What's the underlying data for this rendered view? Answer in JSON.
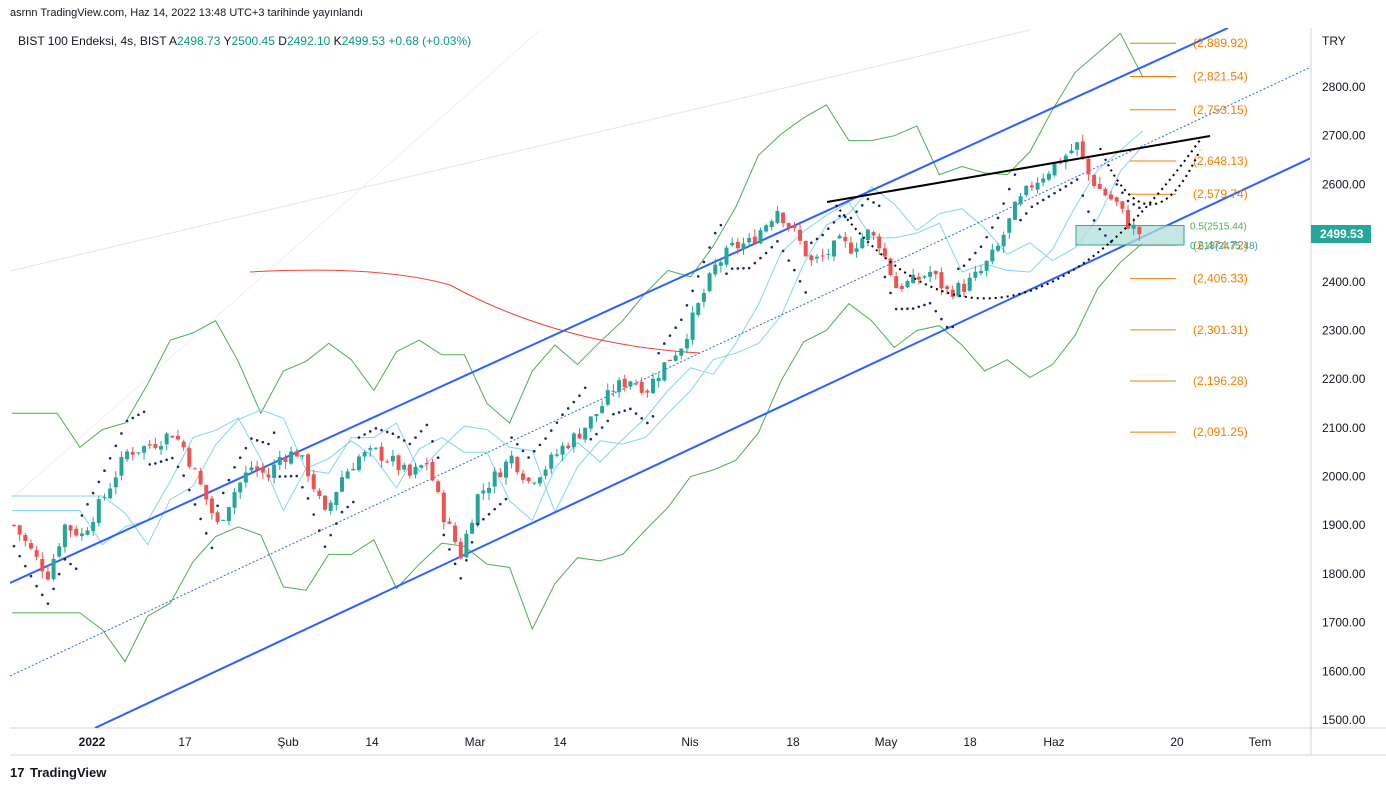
{
  "header": {
    "publish_line": "asrnn TradingView.com, Haz 14, 2022 13:48 UTC+3 tarihinde yayınlandı"
  },
  "legend": {
    "symbol": "BIST 100 Endeksi, 4s, BIST",
    "o_label": "A",
    "o_value": "2498.73",
    "h_label": "Y",
    "h_value": "2500.45",
    "l_label": "D",
    "l_value": "2492.10",
    "c_label": "K",
    "c_value": "2499.53",
    "change": "+0.68 (+0.03%)"
  },
  "footer": {
    "brand": "TradingView",
    "logo_text": "17"
  },
  "colors": {
    "up": "#26a69a",
    "down": "#ef5350",
    "channel": "#2962ff",
    "fib": "#f57c00",
    "fib_zone": "#b2dfdb",
    "price_tag": "#26a69a",
    "ma_green": "#4caf50",
    "ma_red": "#f44336",
    "ma_light": "#81d4fa",
    "sar": "#1a237e"
  },
  "chart_data": {
    "type": "candlestick",
    "currency": "TRY",
    "ylim": [
      1480,
      2920
    ],
    "y_ticks": [
      "2800.00",
      "2700.00",
      "2600.00",
      "2500.00",
      "2400.00",
      "2300.00",
      "2200.00",
      "2100.00",
      "2000.00",
      "1900.00",
      "1800.00",
      "1700.00",
      "1600.00",
      "1500.00"
    ],
    "x_ticks": [
      "2022",
      "17",
      "Şub",
      "14",
      "Mar",
      "14",
      "Nis",
      "18",
      "May",
      "18",
      "Haz",
      "20",
      "Tem"
    ],
    "last_price": "2499.53",
    "fib_levels": [
      {
        "label": "(2,889.92)",
        "value": 2889.92
      },
      {
        "label": "(2,821.54)",
        "value": 2821.54
      },
      {
        "label": "(2,753.15)",
        "value": 2753.15
      },
      {
        "label": "(2,648.13)",
        "value": 2648.13
      },
      {
        "label": "(2,579.74)",
        "value": 2579.74
      },
      {
        "label": "(2,474.72)",
        "value": 2474.72
      },
      {
        "label": "(2,406.33)",
        "value": 2406.33
      },
      {
        "label": "(2,301.31)",
        "value": 2301.31
      },
      {
        "label": "(2,196.28)",
        "value": 2196.28
      },
      {
        "label": "(2,091.25)",
        "value": 2091.25
      }
    ],
    "fib_zone": {
      "upper_label": "0.5(2515.44)",
      "upper": 2515.44,
      "lower_label": "0.618(2475.48)",
      "lower": 2475.48
    },
    "close_path": [
      [
        0,
        1900
      ],
      [
        4,
        1830
      ],
      [
        6,
        1800
      ],
      [
        9,
        1900
      ],
      [
        12,
        1880
      ],
      [
        16,
        1960
      ],
      [
        20,
        2050
      ],
      [
        23,
        2060
      ],
      [
        25,
        2070
      ],
      [
        28,
        2090
      ],
      [
        30,
        2060
      ],
      [
        33,
        1980
      ],
      [
        36,
        1900
      ],
      [
        39,
        1970
      ],
      [
        42,
        2020
      ],
      [
        45,
        2000
      ],
      [
        47,
        2040
      ],
      [
        50,
        2050
      ],
      [
        52,
        2010
      ],
      [
        55,
        1920
      ],
      [
        58,
        2000
      ],
      [
        61,
        2040
      ],
      [
        64,
        2050
      ],
      [
        67,
        2030
      ],
      [
        70,
        2000
      ],
      [
        73,
        2030
      ],
      [
        76,
        1920
      ],
      [
        79,
        1840
      ],
      [
        82,
        1960
      ],
      [
        85,
        2000
      ],
      [
        88,
        2040
      ],
      [
        91,
        1990
      ],
      [
        94,
        2020
      ],
      [
        97,
        2060
      ],
      [
        100,
        2090
      ],
      [
        103,
        2130
      ],
      [
        106,
        2180
      ],
      [
        109,
        2200
      ],
      [
        112,
        2180
      ],
      [
        115,
        2230
      ],
      [
        118,
        2270
      ],
      [
        121,
        2350
      ],
      [
        124,
        2430
      ],
      [
        127,
        2470
      ],
      [
        130,
        2480
      ],
      [
        133,
        2520
      ],
      [
        135,
        2550
      ],
      [
        138,
        2500
      ],
      [
        141,
        2440
      ],
      [
        143,
        2450
      ],
      [
        146,
        2480
      ],
      [
        148,
        2470
      ],
      [
        151,
        2500
      ],
      [
        153,
        2480
      ],
      [
        156,
        2390
      ],
      [
        159,
        2400
      ],
      [
        162,
        2420
      ],
      [
        165,
        2380
      ],
      [
        168,
        2390
      ],
      [
        171,
        2420
      ],
      [
        174,
        2470
      ],
      [
        177,
        2550
      ],
      [
        180,
        2600
      ],
      [
        183,
        2630
      ],
      [
        186,
        2660
      ],
      [
        188,
        2680
      ],
      [
        190,
        2620
      ],
      [
        192,
        2590
      ],
      [
        195,
        2560
      ],
      [
        197,
        2520
      ],
      [
        199,
        2500
      ]
    ]
  }
}
